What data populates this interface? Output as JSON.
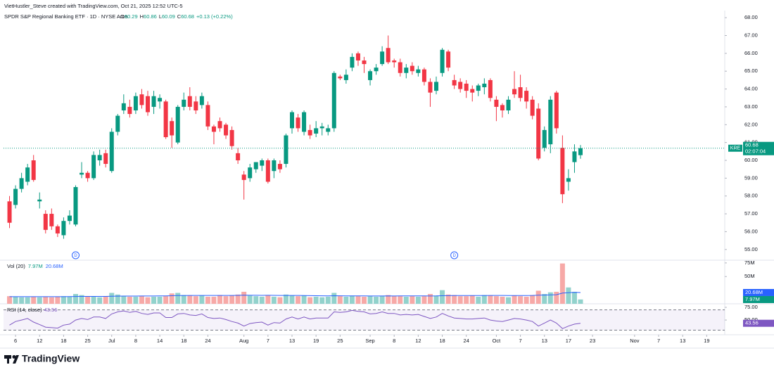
{
  "header": {
    "credit": "VietHustler_Steve created with TradingView.com, Oct 21, 2025 12:52 UTC-5",
    "symbol": "SPDR S&P Regional Banking ETF · 1D · NYSE Arca",
    "ohlc_labels": [
      "O",
      "H",
      "L",
      "C"
    ],
    "change": "+0.13 (+0.22%)",
    "ticker": "KRE",
    "countdown": "02:07:04"
  },
  "footer": {
    "brand": "TradingView"
  },
  "chart_data": [
    {
      "type": "candlestick",
      "up_color": "#089981",
      "down_color": "#f23645",
      "xlim": [
        -1,
        119
      ],
      "ylim": [
        54.4,
        68.4
      ],
      "yticks": [
        {
          "value": 68,
          "label": "68.00"
        },
        {
          "value": 67,
          "label": "67.00"
        },
        {
          "value": 66,
          "label": "66.00"
        },
        {
          "value": 65,
          "label": "65.00"
        },
        {
          "value": 64,
          "label": "64.00"
        },
        {
          "value": 63,
          "label": "63.00"
        },
        {
          "value": 62,
          "label": "62.00"
        },
        {
          "value": 61,
          "label": "61.00"
        },
        {
          "value": 60,
          "label": "60.00"
        },
        {
          "value": 59,
          "label": "59.00"
        },
        {
          "value": 58,
          "label": "58.00"
        },
        {
          "value": 57,
          "label": "57.00"
        },
        {
          "value": 56,
          "label": "56.00"
        },
        {
          "value": 55,
          "label": "55.00"
        }
      ],
      "events": [
        {
          "x": 11,
          "label": "D"
        },
        {
          "x": 74,
          "label": "D"
        }
      ],
      "ohlc": [
        [
          57.7,
          58.0,
          56.2,
          56.5
        ],
        [
          57.5,
          58.6,
          57.3,
          58.4
        ],
        [
          58.4,
          59.3,
          58.2,
          59.0
        ],
        [
          58.8,
          59.8,
          58.6,
          59.6
        ],
        [
          60.0,
          60.3,
          58.8,
          58.9
        ],
        [
          57.7,
          58.2,
          57.3,
          57.8
        ],
        [
          57.0,
          57.2,
          55.9,
          56.1
        ],
        [
          57.0,
          57.3,
          56.1,
          56.3
        ],
        [
          56.3,
          56.4,
          55.7,
          55.9
        ],
        [
          55.8,
          56.8,
          55.6,
          56.6
        ],
        [
          56.6,
          57.2,
          56.4,
          56.9
        ],
        [
          56.4,
          58.6,
          56.3,
          58.5
        ],
        [
          59.2,
          59.9,
          59.0,
          59.3
        ],
        [
          59.3,
          59.4,
          58.8,
          59.0
        ],
        [
          59.0,
          60.5,
          58.9,
          60.3
        ],
        [
          60.0,
          60.6,
          59.7,
          60.3
        ],
        [
          60.4,
          60.6,
          59.6,
          59.8
        ],
        [
          59.4,
          61.8,
          59.3,
          61.6
        ],
        [
          61.6,
          62.6,
          61.4,
          62.5
        ],
        [
          62.8,
          63.7,
          62.6,
          63.2
        ],
        [
          63.0,
          63.4,
          62.4,
          62.6
        ],
        [
          62.8,
          63.8,
          62.6,
          63.6
        ],
        [
          63.7,
          64.0,
          62.9,
          63.1
        ],
        [
          63.6,
          63.9,
          62.5,
          62.7
        ],
        [
          63.0,
          63.9,
          62.6,
          63.6
        ],
        [
          63.3,
          63.7,
          62.9,
          63.5
        ],
        [
          63.3,
          63.4,
          61.2,
          61.3
        ],
        [
          62.2,
          62.4,
          60.7,
          61.4
        ],
        [
          61.0,
          63.1,
          60.9,
          63.0
        ],
        [
          63.0,
          63.8,
          62.8,
          63.4
        ],
        [
          63.6,
          64.1,
          62.8,
          63.0
        ],
        [
          63.3,
          63.6,
          62.6,
          62.8
        ],
        [
          63.1,
          63.8,
          62.9,
          63.6
        ],
        [
          63.1,
          63.3,
          61.7,
          61.9
        ],
        [
          61.9,
          62.0,
          60.9,
          61.6
        ],
        [
          62.2,
          62.4,
          61.6,
          61.8
        ],
        [
          62.0,
          62.1,
          61.2,
          61.4
        ],
        [
          61.7,
          61.9,
          60.6,
          60.8
        ],
        [
          60.4,
          60.7,
          59.8,
          60.0
        ],
        [
          59.2,
          59.4,
          57.8,
          58.9
        ],
        [
          59.0,
          59.8,
          58.8,
          59.6
        ],
        [
          59.5,
          59.9,
          59.3,
          59.9
        ],
        [
          59.7,
          60.1,
          59.4,
          60.0
        ],
        [
          60.0,
          60.1,
          58.7,
          58.8
        ],
        [
          59.4,
          60.1,
          59.0,
          60.0
        ],
        [
          59.8,
          60.0,
          59.3,
          59.5
        ],
        [
          59.8,
          61.5,
          59.6,
          61.4
        ],
        [
          61.8,
          62.8,
          61.5,
          62.7
        ],
        [
          62.4,
          62.6,
          61.6,
          61.8
        ],
        [
          61.6,
          62.8,
          61.4,
          62.7
        ],
        [
          61.7,
          62.0,
          61.2,
          61.4
        ],
        [
          61.5,
          62.2,
          61.3,
          61.8
        ],
        [
          61.8,
          62.1,
          61.4,
          61.9
        ],
        [
          61.6,
          62.0,
          61.4,
          61.8
        ],
        [
          61.8,
          65.0,
          61.6,
          64.9
        ],
        [
          64.7,
          64.8,
          64.5,
          64.6
        ],
        [
          64.5,
          65.1,
          64.3,
          64.8
        ],
        [
          65.2,
          66.0,
          65.0,
          65.8
        ],
        [
          66.0,
          66.1,
          65.3,
          65.6
        ],
        [
          65.6,
          65.8,
          64.9,
          65.4
        ],
        [
          64.5,
          65.1,
          64.2,
          65.0
        ],
        [
          65.0,
          65.4,
          64.8,
          65.2
        ],
        [
          65.4,
          66.4,
          65.3,
          66.1
        ],
        [
          66.3,
          67.0,
          65.4,
          65.5
        ],
        [
          65.6,
          65.7,
          65.2,
          65.5
        ],
        [
          65.5,
          65.7,
          64.7,
          64.9
        ],
        [
          64.9,
          65.4,
          64.6,
          65.2
        ],
        [
          65.3,
          65.5,
          64.8,
          65.0
        ],
        [
          64.9,
          65.3,
          64.7,
          65.1
        ],
        [
          65.1,
          65.2,
          64.2,
          64.4
        ],
        [
          64.4,
          64.6,
          63.0,
          63.8
        ],
        [
          63.9,
          64.7,
          63.7,
          64.4
        ],
        [
          64.9,
          66.3,
          64.7,
          66.2
        ],
        [
          66.1,
          66.2,
          65.0,
          65.2
        ],
        [
          64.5,
          64.8,
          64.0,
          64.2
        ],
        [
          64.4,
          64.6,
          63.8,
          64.0
        ],
        [
          64.3,
          64.5,
          63.5,
          63.9
        ],
        [
          64.0,
          64.2,
          63.3,
          63.8
        ],
        [
          63.9,
          64.3,
          63.6,
          64.2
        ],
        [
          64.1,
          64.6,
          63.7,
          64.3
        ],
        [
          64.5,
          64.6,
          63.3,
          63.5
        ],
        [
          63.4,
          63.6,
          62.2,
          63.0
        ],
        [
          63.1,
          63.2,
          62.4,
          62.8
        ],
        [
          62.8,
          63.6,
          62.6,
          63.4
        ],
        [
          64.0,
          65.0,
          63.5,
          63.7
        ],
        [
          64.1,
          64.8,
          63.3,
          63.5
        ],
        [
          63.9,
          64.1,
          62.9,
          63.3
        ],
        [
          63.4,
          63.6,
          62.3,
          62.5
        ],
        [
          62.9,
          63.2,
          60.0,
          60.1
        ],
        [
          60.7,
          61.9,
          60.5,
          61.7
        ],
        [
          60.9,
          63.6,
          60.4,
          63.4
        ],
        [
          63.8,
          63.9,
          61.5,
          61.8
        ],
        [
          60.7,
          61.4,
          57.6,
          58.1
        ],
        [
          58.8,
          59.5,
          58.3,
          59.0
        ],
        [
          59.9,
          60.9,
          59.3,
          60.5
        ],
        [
          60.29,
          60.86,
          60.09,
          60.68
        ]
      ]
    },
    {
      "type": "bar",
      "title": "Vol (20)",
      "xlim": [
        -1,
        119
      ],
      "ylim": [
        0,
        80
      ],
      "yticks": [
        {
          "value": 75,
          "label": "75M"
        },
        {
          "value": 50,
          "label": "50M"
        }
      ],
      "up_color": "#92d2cc",
      "down_color": "#f7a9a7",
      "values": [
        14,
        13,
        12,
        12,
        13,
        12,
        13,
        12,
        13,
        14,
        13,
        18,
        16,
        13,
        14,
        12,
        14,
        20,
        17,
        14,
        13,
        13,
        14,
        12,
        13,
        13,
        14,
        19,
        20,
        16,
        15,
        14,
        15,
        13,
        13,
        16,
        14,
        15,
        17,
        22,
        15,
        14,
        13,
        16,
        13,
        12,
        17,
        15,
        14,
        15,
        12,
        13,
        12,
        13,
        20,
        14,
        13,
        15,
        14,
        13,
        14,
        13,
        14,
        16,
        14,
        14,
        13,
        14,
        13,
        14,
        18,
        15,
        25,
        17,
        16,
        14,
        14,
        15,
        13,
        16,
        15,
        14,
        13,
        12,
        15,
        14,
        13,
        16,
        24,
        18,
        21,
        22,
        74,
        30,
        22,
        7.97
      ],
      "last_value_label": "7.97M",
      "ma": {
        "name": "MA",
        "color": "#2962ff",
        "values": [
          13,
          13,
          13,
          13,
          13,
          13,
          13,
          13,
          13,
          13,
          13.2,
          13.4,
          13.5,
          13.5,
          13.6,
          13.5,
          13.6,
          13.9,
          14.1,
          14.2,
          14.2,
          14.2,
          14.3,
          14.3,
          14.3,
          14.4,
          14.5,
          14.8,
          15.1,
          15.2,
          15.3,
          15.3,
          15.4,
          15.3,
          15.3,
          15.4,
          15.4,
          15.4,
          15.5,
          15.7,
          15.6,
          15.6,
          15.5,
          15.6,
          15.5,
          15.3,
          15.4,
          15.4,
          15.3,
          15.2,
          15,
          14.9,
          14.7,
          14.6,
          14.8,
          14.7,
          14.6,
          14.6,
          14.5,
          14.4,
          14.3,
          14.3,
          14.3,
          14.4,
          14.3,
          14.4,
          14.4,
          14.4,
          14.4,
          14.4,
          14.3,
          14.4,
          14.9,
          15,
          15.1,
          15.1,
          15.1,
          15.2,
          15.1,
          15.2,
          15.3,
          15.3,
          15.3,
          15.2,
          15.2,
          15.2,
          15.2,
          15.3,
          15.8,
          16,
          16.3,
          16.7,
          19.6,
          20.4,
          20.9,
          20.68
        ],
        "last_value_label": "20.68M"
      }
    },
    {
      "type": "line",
      "title": "RSI (14, close)",
      "xlim": [
        -1,
        119
      ],
      "ylim": [
        21,
        82
      ],
      "yticks": [
        {
          "value": 75,
          "label": "75.00"
        },
        {
          "value": 50,
          "label": "50.00"
        }
      ],
      "bands": [
        70,
        30
      ],
      "band_color": "#7e57c2",
      "xticks": [
        {
          "value": 1,
          "label": "6"
        },
        {
          "value": 5,
          "label": "12"
        },
        {
          "value": 9,
          "label": "18"
        },
        {
          "value": 13,
          "label": "25"
        },
        {
          "value": 17,
          "label": "Jul"
        },
        {
          "value": 21,
          "label": "8"
        },
        {
          "value": 25,
          "label": "14"
        },
        {
          "value": 29,
          "label": "18"
        },
        {
          "value": 33,
          "label": "24"
        },
        {
          "value": 39,
          "label": "Aug"
        },
        {
          "value": 43,
          "label": "7"
        },
        {
          "value": 47,
          "label": "13"
        },
        {
          "value": 51,
          "label": "19"
        },
        {
          "value": 55,
          "label": "25"
        },
        {
          "value": 60,
          "label": "Sep"
        },
        {
          "value": 64,
          "label": "8"
        },
        {
          "value": 68,
          "label": "12"
        },
        {
          "value": 72,
          "label": "18"
        },
        {
          "value": 76,
          "label": "24"
        },
        {
          "value": 81,
          "label": "Oct"
        },
        {
          "value": 85,
          "label": "7"
        },
        {
          "value": 89,
          "label": "13"
        },
        {
          "value": 93,
          "label": "17"
        },
        {
          "value": 97,
          "label": "23"
        },
        {
          "value": 104,
          "label": "Nov"
        },
        {
          "value": 108,
          "label": "7"
        },
        {
          "value": 112,
          "label": "13"
        },
        {
          "value": 116,
          "label": "19"
        }
      ],
      "series": [
        {
          "name": "RSI",
          "color": "#7e57c2",
          "values": [
            40,
            47,
            50,
            53,
            46,
            41,
            36,
            35,
            34,
            40,
            42,
            50,
            53,
            51,
            56,
            56,
            53,
            62,
            66,
            68,
            65,
            67,
            63,
            61,
            64,
            64,
            55,
            55,
            62,
            63,
            60,
            59,
            62,
            55,
            53,
            54,
            51,
            47,
            44,
            38,
            43,
            45,
            46,
            40,
            45,
            44,
            52,
            56,
            52,
            56,
            52,
            54,
            54,
            54,
            66,
            65,
            66,
            69,
            67,
            66,
            62,
            63,
            66,
            63,
            63,
            60,
            61,
            60,
            61,
            57,
            53,
            56,
            63,
            58,
            54,
            53,
            52,
            52,
            53,
            54,
            50,
            48,
            47,
            50,
            53,
            52,
            50,
            47,
            38,
            44,
            50,
            44,
            33,
            38,
            42,
            43.56
          ]
        }
      ]
    }
  ]
}
